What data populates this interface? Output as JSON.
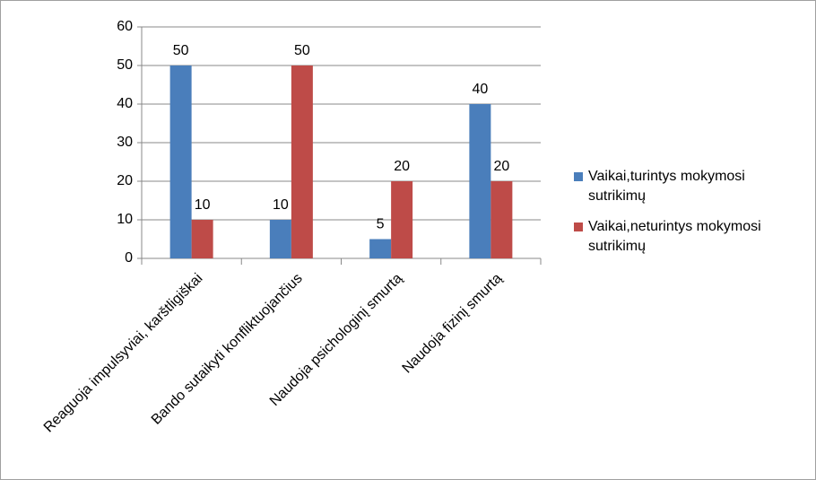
{
  "chart_data": {
    "type": "bar",
    "categories": [
      "Reaguoja impulsyviai, karštligiškai",
      "Bando sutaikyti konfliktuojančius",
      "Naudoja psichologinį smurtą",
      "Naudoja fizinį smurtą"
    ],
    "series": [
      {
        "name": "Vaikai,turintys mokymosi sutrikimų",
        "color": "#4a7ebb",
        "values": [
          50,
          10,
          5,
          40
        ]
      },
      {
        "name": "Vaikai,neturintys mokymosi sutrikimų",
        "color": "#be4b48",
        "values": [
          10,
          50,
          20,
          20
        ]
      }
    ],
    "ylim": [
      0,
      60
    ],
    "yticks": [
      0,
      10,
      20,
      30,
      40,
      50,
      60
    ],
    "grid": true,
    "legend": "right"
  }
}
